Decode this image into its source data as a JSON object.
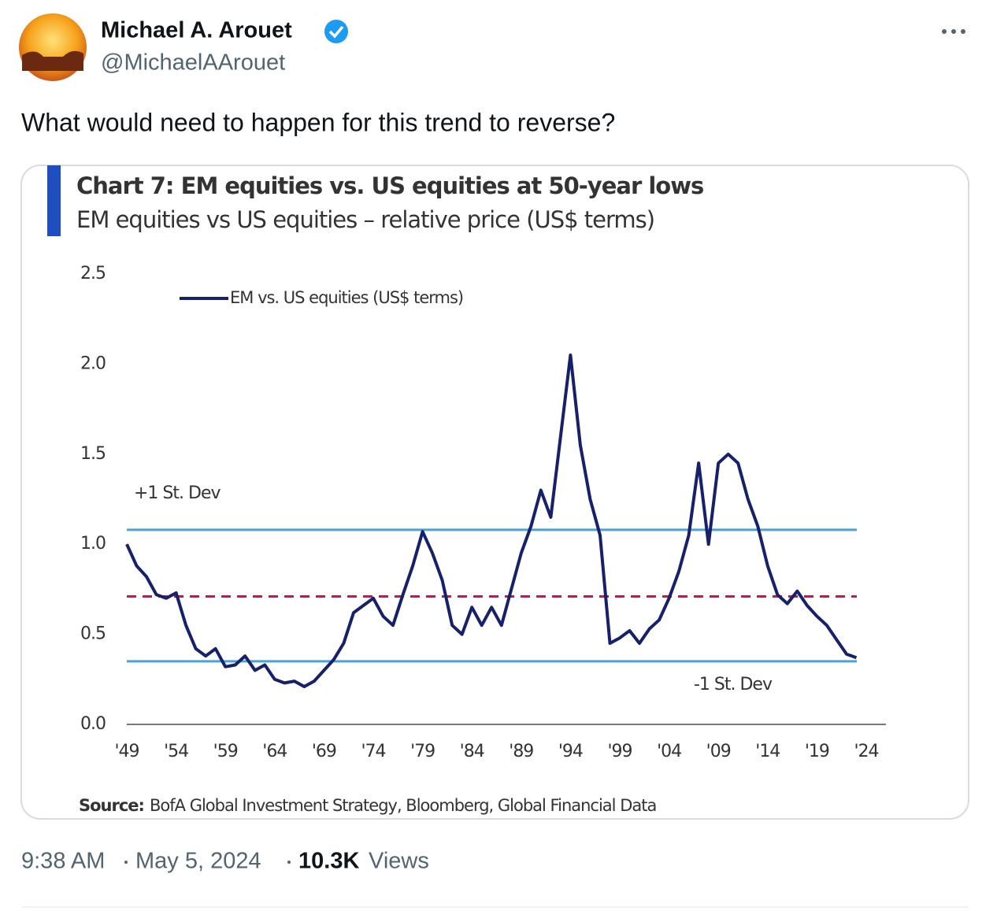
{
  "tweet": {
    "author_name": "Michael A. Arouet",
    "handle": "@MichaelAArouet",
    "text": "What would need to happen for this trend to reverse?",
    "time": "9:38 AM",
    "date": "May 5, 2024",
    "views": "10.3K",
    "views_label": "Views"
  },
  "chart_data": {
    "type": "line",
    "title": "Chart 7: EM equities vs. US equities at 50-year lows",
    "subtitle": "EM equities vs US equities – relative price (US$ terms)",
    "source": {
      "label": "Source:",
      "text": "BofA Global Investment Strategy, Bloomberg, Global Financial Data"
    },
    "x": [
      1949,
      1950,
      1951,
      1952,
      1953,
      1954,
      1955,
      1956,
      1957,
      1958,
      1959,
      1960,
      1961,
      1962,
      1963,
      1964,
      1965,
      1966,
      1967,
      1968,
      1969,
      1970,
      1971,
      1972,
      1973,
      1974,
      1975,
      1976,
      1977,
      1978,
      1979,
      1980,
      1981,
      1982,
      1983,
      1984,
      1985,
      1986,
      1987,
      1988,
      1989,
      1990,
      1991,
      1992,
      1993,
      1994,
      1995,
      1996,
      1997,
      1998,
      1999,
      2000,
      2001,
      2002,
      2003,
      2004,
      2005,
      2006,
      2007,
      2008,
      2009,
      2010,
      2011,
      2012,
      2013,
      2014,
      2015,
      2016,
      2017,
      2018,
      2019,
      2020,
      2021,
      2022,
      2023
    ],
    "series": [
      {
        "name": "EM vs. US equities (US$ terms)",
        "color": "#16206b",
        "values": [
          1.0,
          0.88,
          0.82,
          0.72,
          0.7,
          0.73,
          0.55,
          0.42,
          0.38,
          0.42,
          0.32,
          0.33,
          0.38,
          0.3,
          0.33,
          0.25,
          0.23,
          0.24,
          0.21,
          0.24,
          0.3,
          0.36,
          0.45,
          0.62,
          0.66,
          0.7,
          0.6,
          0.55,
          0.72,
          0.88,
          1.07,
          0.95,
          0.8,
          0.55,
          0.5,
          0.65,
          0.55,
          0.65,
          0.55,
          0.75,
          0.95,
          1.1,
          1.3,
          1.15,
          1.6,
          2.05,
          1.55,
          1.25,
          1.05,
          0.45,
          0.48,
          0.52,
          0.45,
          0.53,
          0.58,
          0.7,
          0.85,
          1.05,
          1.45,
          1.0,
          1.45,
          1.5,
          1.45,
          1.25,
          1.1,
          0.88,
          0.72,
          0.67,
          0.74,
          0.66,
          0.6,
          0.55,
          0.47,
          0.39,
          0.37
        ]
      }
    ],
    "reference_lines": [
      {
        "label": "+1 St. Dev",
        "value": 1.08,
        "color": "#4aa3d8",
        "style": "solid"
      },
      {
        "value": 0.71,
        "color": "#b0234a",
        "style": "dashed"
      },
      {
        "label": "-1 St. Dev",
        "value": 0.35,
        "color": "#4aa3d8",
        "style": "solid"
      }
    ],
    "xlim": [
      1949,
      2024
    ],
    "xticks": [
      {
        "value": 1949,
        "label": "'49"
      },
      {
        "value": 1954,
        "label": "'54"
      },
      {
        "value": 1959,
        "label": "'59"
      },
      {
        "value": 1964,
        "label": "'64"
      },
      {
        "value": 1969,
        "label": "'69"
      },
      {
        "value": 1974,
        "label": "'74"
      },
      {
        "value": 1979,
        "label": "'79"
      },
      {
        "value": 1984,
        "label": "'84"
      },
      {
        "value": 1989,
        "label": "'89"
      },
      {
        "value": 1994,
        "label": "'94"
      },
      {
        "value": 1999,
        "label": "'99"
      },
      {
        "value": 2004,
        "label": "'04"
      },
      {
        "value": 2009,
        "label": "'09"
      },
      {
        "value": 2014,
        "label": "'14"
      },
      {
        "value": 2019,
        "label": "'19"
      },
      {
        "value": 2024,
        "label": "'24"
      }
    ],
    "ylim": [
      0,
      2.5
    ],
    "yticks": [
      {
        "value": 0,
        "label": "0.0"
      },
      0.5,
      {
        "value": 1,
        "label": "1.0"
      },
      1.5,
      {
        "value": 2,
        "label": "2.0"
      },
      2.5
    ],
    "grid": false
  }
}
